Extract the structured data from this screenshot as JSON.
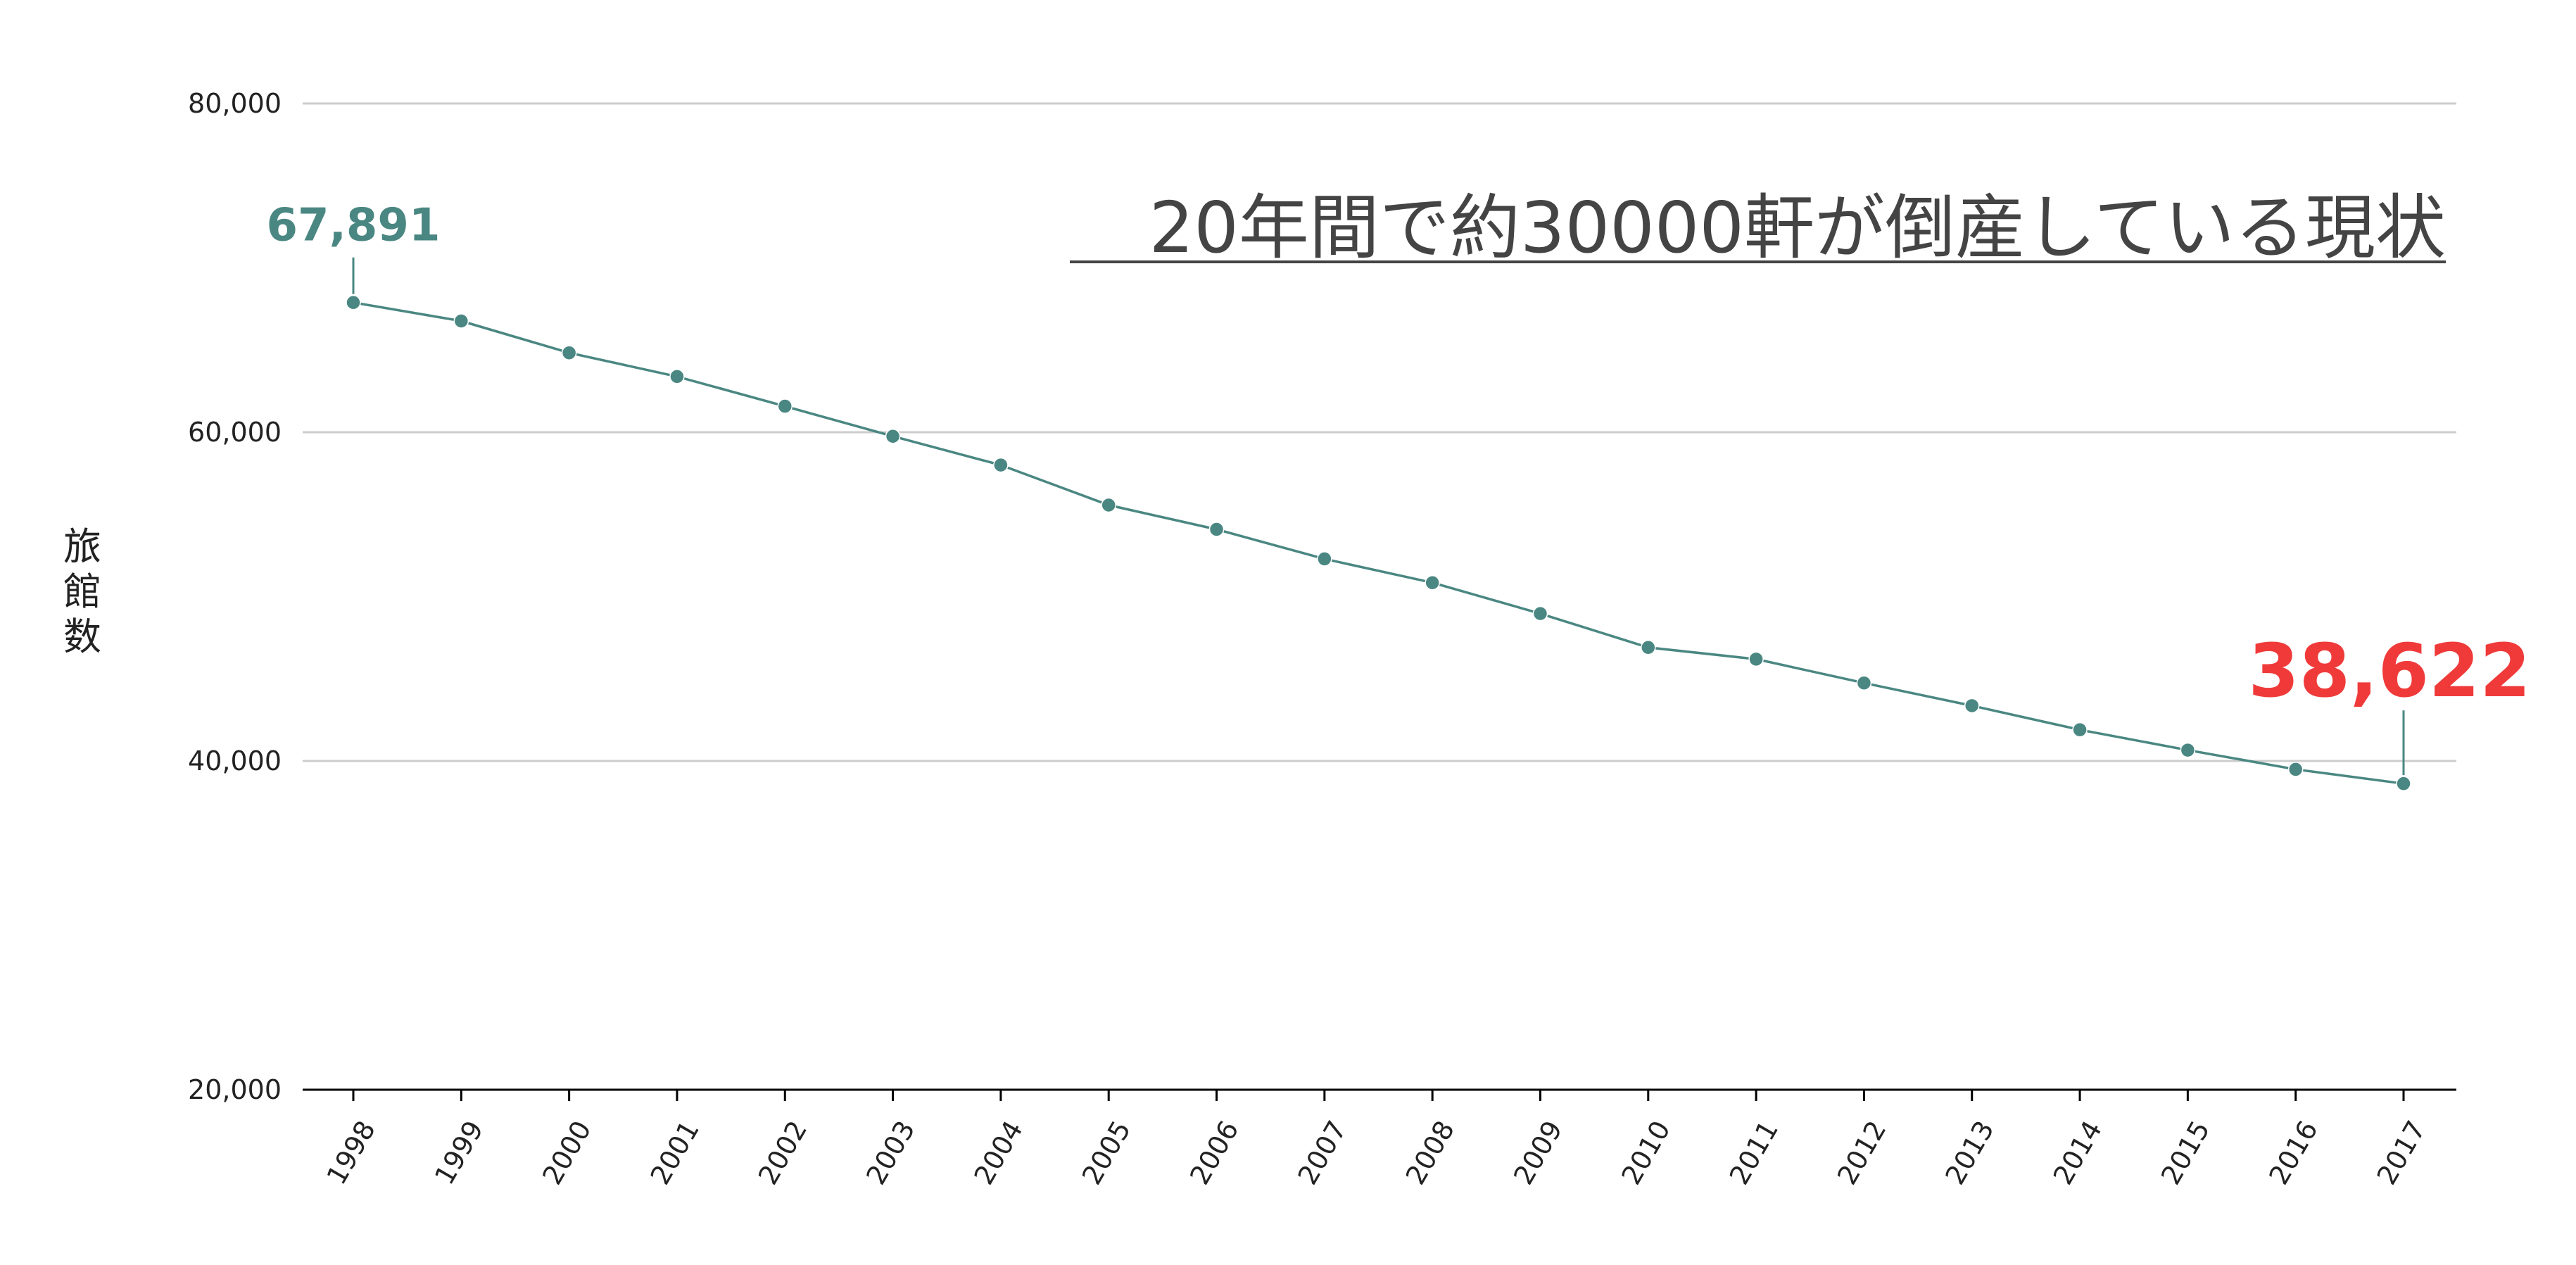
{
  "chart_data": {
    "type": "line",
    "title": "20年間で約30000軒が倒産している現状",
    "xlabel": "",
    "ylabel": "旅館数",
    "ylim": [
      20000,
      80000
    ],
    "yticks": [
      20000,
      40000,
      60000,
      80000
    ],
    "ytick_labels": [
      "20,000",
      "40,000",
      "60,000",
      "80,000"
    ],
    "grid": true,
    "legend": "none",
    "categories": [
      "1998",
      "1999",
      "2000",
      "2001",
      "2002",
      "2003",
      "2004",
      "2005",
      "2006",
      "2007",
      "2008",
      "2009",
      "2010",
      "2011",
      "2012",
      "2013",
      "2014",
      "2015",
      "2016",
      "2017"
    ],
    "series": [
      {
        "values": [
          67891,
          66766,
          64831,
          63388,
          61583,
          59754,
          58003,
          55567,
          54090,
          52295,
          50846,
          48966,
          46906,
          46196,
          44744,
          43363,
          41899,
          40661,
          39489,
          38622
        ]
      }
    ],
    "annotations": [
      {
        "category": "1998",
        "label": "67,891"
      },
      {
        "category": "2017",
        "label": "38,622"
      }
    ]
  },
  "colors": {
    "line": "#4a8782",
    "marker": "#4a8782",
    "start_label": "#4a8782",
    "end_label": "#f03a3a",
    "grid": "#cccccc",
    "axis": "#000000",
    "title": "#444444"
  }
}
